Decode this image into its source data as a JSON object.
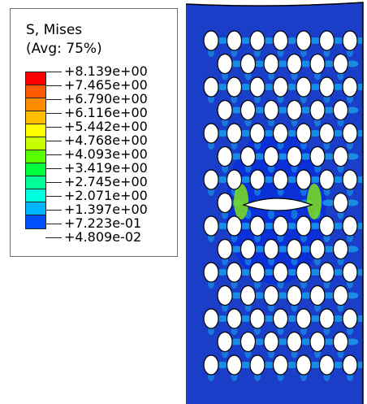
{
  "legend": {
    "title_line1": "S, Mises",
    "title_line2": "(Avg: 75%)",
    "levels": [
      {
        "label": "+8.139e+00",
        "color": "#ff0000"
      },
      {
        "label": "+7.465e+00",
        "color": "#ff5a00"
      },
      {
        "label": "+6.790e+00",
        "color": "#ff8c00"
      },
      {
        "label": "+6.116e+00",
        "color": "#ffbe00"
      },
      {
        "label": "+5.442e+00",
        "color": "#ffff00"
      },
      {
        "label": "+4.768e+00",
        "color": "#c8ff00"
      },
      {
        "label": "+4.093e+00",
        "color": "#5aff00"
      },
      {
        "label": "+3.419e+00",
        "color": "#00ff3c"
      },
      {
        "label": "+2.745e+00",
        "color": "#00ff96"
      },
      {
        "label": "+2.071e+00",
        "color": "#00ffdc"
      },
      {
        "label": "+1.397e+00",
        "color": "#00b4ff"
      },
      {
        "label": "+7.223e-01",
        "color": "#0050ff"
      },
      {
        "label": "+4.809e-02",
        "color": "#0000ff"
      }
    ]
  },
  "contour": {
    "background_color": "#1a3ec8",
    "low_stress_color": "#0b2fd8",
    "mid_stress_color": "#18a8f0",
    "high_stress_color": "#7ee01a",
    "hole_color": "#ffffff",
    "edge_color": "#000000"
  }
}
